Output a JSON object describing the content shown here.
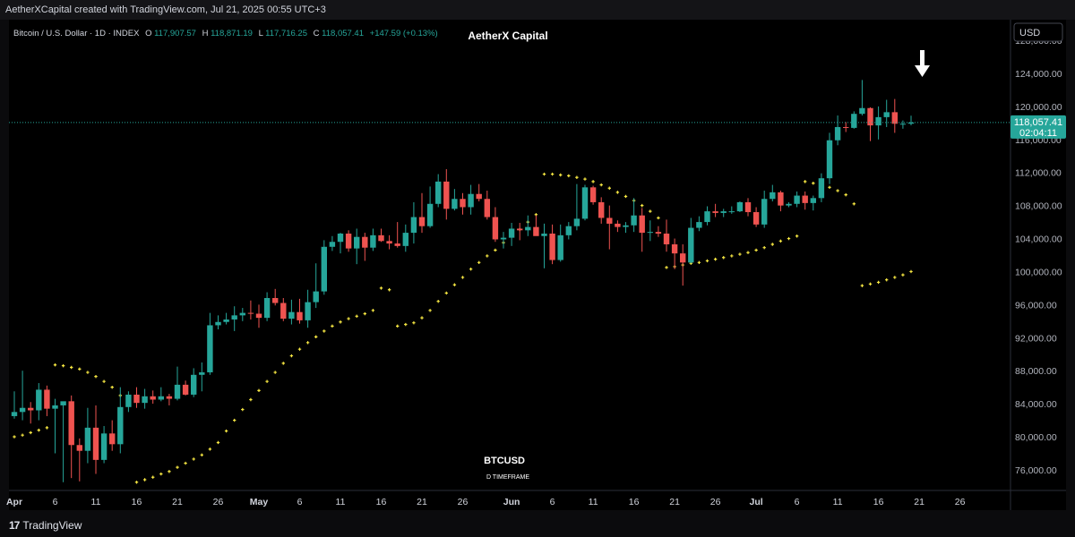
{
  "header": {
    "credit": "AetherXCapital created with TradingView.com, Jul 21, 2025 00:55 UTC+3"
  },
  "legend": {
    "symbol": "Bitcoin / U.S. Dollar · 1D · INDEX",
    "o_label": "O",
    "o_value": "117,907.57",
    "h_label": "H",
    "h_value": "118,871.19",
    "l_label": "L",
    "l_value": "117,716.25",
    "c_label": "C",
    "c_value": "118,057.41",
    "change": "+147.59 (+0.13%)"
  },
  "watermark": {
    "brand": "AetherX Capital",
    "ticker": "BTCUSD",
    "timeframe": "D TIMEFRAME"
  },
  "price_axis": {
    "currency": "USD",
    "last_price": "118,057.41",
    "countdown": "02:04:11"
  },
  "footer": {
    "brand": "TradingView"
  },
  "colors": {
    "up": "#26a69a",
    "down": "#ef5350",
    "sar": "#f5e642",
    "bg": "#000000",
    "grid_text": "#b2b5be"
  },
  "chart_data": {
    "type": "candlestick",
    "x_axis_labels": [
      "Apr",
      "6",
      "11",
      "16",
      "21",
      "26",
      "May",
      "6",
      "11",
      "16",
      "21",
      "26",
      "Jun",
      "6",
      "11",
      "16",
      "21",
      "26",
      "Jul",
      "6",
      "11",
      "16",
      "21",
      "26"
    ],
    "x_axis_dates": [
      "2025-04-01",
      "2025-04-06",
      "2025-04-11",
      "2025-04-16",
      "2025-04-21",
      "2025-04-26",
      "2025-05-01",
      "2025-05-06",
      "2025-05-11",
      "2025-05-16",
      "2025-05-21",
      "2025-05-26",
      "2025-06-01",
      "2025-06-06",
      "2025-06-11",
      "2025-06-16",
      "2025-06-21",
      "2025-06-26",
      "2025-07-01",
      "2025-07-06",
      "2025-07-11",
      "2025-07-16",
      "2025-07-21",
      "2025-07-26"
    ],
    "y_ticks": [
      "128,000.00",
      "124,000.00",
      "120,000.00",
      "116,000.00",
      "112,000.00",
      "108,000.00",
      "104,000.00",
      "100,000.00",
      "96,000.00",
      "92,000.00",
      "88,000.00",
      "84,000.00",
      "80,000.00",
      "76,000.00"
    ],
    "ylim": [
      73500,
      130500
    ],
    "last_price": 118057.41,
    "annotation": "down-arrow above 2025-07-18",
    "candles": [
      [
        "2025-04-01",
        82500,
        85500,
        82200,
        83000
      ],
      [
        "2025-04-02",
        83000,
        88000,
        82000,
        83500
      ],
      [
        "2025-04-03",
        83500,
        84200,
        81600,
        83200
      ],
      [
        "2025-04-04",
        83200,
        86500,
        82000,
        85700
      ],
      [
        "2025-04-05",
        85700,
        86200,
        82500,
        83400
      ],
      [
        "2025-04-06",
        83400,
        84600,
        78000,
        83800
      ],
      [
        "2025-04-07",
        83800,
        84200,
        74500,
        84300
      ],
      [
        "2025-04-08",
        84300,
        85000,
        75000,
        79000
      ],
      [
        "2025-04-09",
        79000,
        79800,
        74600,
        78300
      ],
      [
        "2025-04-10",
        78300,
        83500,
        76800,
        81100
      ],
      [
        "2025-04-11",
        81100,
        83800,
        75500,
        77200
      ],
      [
        "2025-04-12",
        77200,
        81300,
        76800,
        80400
      ],
      [
        "2025-04-13",
        80400,
        82000,
        78300,
        79100
      ],
      [
        "2025-04-14",
        79100,
        86000,
        78000,
        83600
      ],
      [
        "2025-04-15",
        83600,
        85500,
        83000,
        85100
      ],
      [
        "2025-04-16",
        85100,
        86000,
        83500,
        84100
      ],
      [
        "2025-04-17",
        84100,
        85800,
        83400,
        84900
      ],
      [
        "2025-04-18",
        84900,
        85600,
        84000,
        84500
      ],
      [
        "2025-04-19",
        84500,
        86000,
        84300,
        84900
      ],
      [
        "2025-04-20",
        84900,
        85200,
        83800,
        84600
      ],
      [
        "2025-04-21",
        84600,
        88500,
        84400,
        86300
      ],
      [
        "2025-04-22",
        86300,
        86800,
        85000,
        85100
      ],
      [
        "2025-04-23",
        85100,
        88300,
        84800,
        87500
      ],
      [
        "2025-04-24",
        87500,
        89000,
        85500,
        87800
      ],
      [
        "2025-04-25",
        87800,
        95000,
        87500,
        93500
      ],
      [
        "2025-04-26",
        93500,
        94700,
        93000,
        93900
      ],
      [
        "2025-04-27",
        93900,
        95000,
        93600,
        94200
      ],
      [
        "2025-04-28",
        94200,
        95800,
        92800,
        94700
      ],
      [
        "2025-04-29",
        94700,
        95600,
        94000,
        95000
      ],
      [
        "2025-04-30",
        95000,
        96500,
        94200,
        94900
      ],
      [
        "2025-05-01",
        94900,
        96000,
        93200,
        94400
      ],
      [
        "2025-05-02",
        94400,
        97500,
        94000,
        96800
      ],
      [
        "2025-05-03",
        96800,
        97900,
        95900,
        96200
      ],
      [
        "2025-05-04",
        96200,
        96800,
        94000,
        94300
      ],
      [
        "2025-05-05",
        94300,
        96600,
        93600,
        95100
      ],
      [
        "2025-05-06",
        95100,
        96700,
        93700,
        94100
      ],
      [
        "2025-05-07",
        94100,
        97800,
        93200,
        96300
      ],
      [
        "2025-05-08",
        96300,
        101000,
        95600,
        97600
      ],
      [
        "2025-05-09",
        97600,
        103800,
        97200,
        103000
      ],
      [
        "2025-05-10",
        103000,
        104300,
        102500,
        103600
      ],
      [
        "2025-05-11",
        103600,
        104700,
        102200,
        104600
      ],
      [
        "2025-05-12",
        104600,
        105000,
        102400,
        102800
      ],
      [
        "2025-05-13",
        102800,
        105200,
        100900,
        104200
      ],
      [
        "2025-05-14",
        104200,
        104700,
        101300,
        102900
      ],
      [
        "2025-05-15",
        102900,
        105200,
        102500,
        104400
      ],
      [
        "2025-05-16",
        104400,
        105200,
        103600,
        103700
      ],
      [
        "2025-05-17",
        103700,
        104400,
        102700,
        103400
      ],
      [
        "2025-05-18",
        103400,
        106000,
        102900,
        103100
      ],
      [
        "2025-05-19",
        103100,
        105700,
        102400,
        104700
      ],
      [
        "2025-05-20",
        104700,
        108400,
        103400,
        106600
      ],
      [
        "2025-05-21",
        106600,
        109500,
        104700,
        105500
      ],
      [
        "2025-05-22",
        105500,
        110300,
        105300,
        108200
      ],
      [
        "2025-05-23",
        108200,
        111800,
        107800,
        110900
      ],
      [
        "2025-05-24",
        110900,
        112400,
        106300,
        107600
      ],
      [
        "2025-05-25",
        107600,
        110000,
        107400,
        108800
      ],
      [
        "2025-05-26",
        108800,
        109500,
        106900,
        107800
      ],
      [
        "2025-05-27",
        107800,
        110500,
        106900,
        109400
      ],
      [
        "2025-05-28",
        109400,
        110600,
        108500,
        108800
      ],
      [
        "2025-05-29",
        108800,
        109800,
        106300,
        106600
      ],
      [
        "2025-05-30",
        106600,
        107800,
        103600,
        103900
      ],
      [
        "2025-05-31",
        103900,
        104800,
        102800,
        104100
      ],
      [
        "2025-06-01",
        104100,
        105900,
        103100,
        105200
      ],
      [
        "2025-06-02",
        105200,
        105900,
        103800,
        105000
      ],
      [
        "2025-06-03",
        105000,
        106800,
        104300,
        105400
      ],
      [
        "2025-06-04",
        105400,
        106800,
        104400,
        104300
      ],
      [
        "2025-06-05",
        104300,
        105800,
        100400,
        104600
      ],
      [
        "2025-06-06",
        104600,
        105700,
        100900,
        101400
      ],
      [
        "2025-06-07",
        101400,
        105700,
        101200,
        104400
      ],
      [
        "2025-06-08",
        104400,
        106000,
        103900,
        105500
      ],
      [
        "2025-06-09",
        105500,
        110600,
        105000,
        106400
      ],
      [
        "2025-06-10",
        106400,
        110500,
        106200,
        110200
      ],
      [
        "2025-06-11",
        110200,
        110400,
        108100,
        108400
      ],
      [
        "2025-06-12",
        108400,
        109000,
        105800,
        106500
      ],
      [
        "2025-06-13",
        106500,
        108000,
        102700,
        105800
      ],
      [
        "2025-06-14",
        105800,
        106200,
        104800,
        105400
      ],
      [
        "2025-06-15",
        105400,
        106000,
        104700,
        105600
      ],
      [
        "2025-06-16",
        105600,
        108900,
        104800,
        106800
      ],
      [
        "2025-06-17",
        106800,
        107700,
        102400,
        104700
      ],
      [
        "2025-06-18",
        104700,
        106200,
        103700,
        104800
      ],
      [
        "2025-06-19",
        104800,
        105500,
        104200,
        104600
      ],
      [
        "2025-06-20",
        104600,
        106300,
        102400,
        103300
      ],
      [
        "2025-06-21",
        103300,
        104000,
        100300,
        102200
      ],
      [
        "2025-06-22",
        102200,
        103300,
        98300,
        101100
      ],
      [
        "2025-06-23",
        101100,
        106500,
        101000,
        105300
      ],
      [
        "2025-06-24",
        105300,
        106700,
        104900,
        106000
      ],
      [
        "2025-06-25",
        106000,
        107900,
        105600,
        107300
      ],
      [
        "2025-06-26",
        107300,
        108200,
        106600,
        107100
      ],
      [
        "2025-06-27",
        107100,
        107600,
        106600,
        107300
      ],
      [
        "2025-06-28",
        107300,
        107900,
        107000,
        107300
      ],
      [
        "2025-06-29",
        107300,
        108500,
        107200,
        108400
      ],
      [
        "2025-06-30",
        108400,
        108900,
        106700,
        107200
      ],
      [
        "2025-07-01",
        107200,
        107800,
        105400,
        105700
      ],
      [
        "2025-07-02",
        105700,
        109800,
        105300,
        108800
      ],
      [
        "2025-07-03",
        108800,
        110500,
        108500,
        109600
      ],
      [
        "2025-07-04",
        109600,
        109800,
        107300,
        108000
      ],
      [
        "2025-07-05",
        108000,
        108400,
        107800,
        108200
      ],
      [
        "2025-07-06",
        108200,
        109700,
        107800,
        109200
      ],
      [
        "2025-07-07",
        109200,
        109700,
        107500,
        108300
      ],
      [
        "2025-07-08",
        108300,
        109200,
        107400,
        108900
      ],
      [
        "2025-07-09",
        108900,
        111900,
        108400,
        111300
      ],
      [
        "2025-07-10",
        111300,
        116800,
        110600,
        115900
      ],
      [
        "2025-07-11",
        115900,
        118900,
        115300,
        117500
      ],
      [
        "2025-07-12",
        117500,
        118100,
        116900,
        117400
      ],
      [
        "2025-07-13",
        117400,
        119400,
        117300,
        119100
      ],
      [
        "2025-07-14",
        119100,
        123200,
        118900,
        119800
      ],
      [
        "2025-07-15",
        119800,
        119900,
        115800,
        117700
      ],
      [
        "2025-07-16",
        117700,
        120000,
        116000,
        118700
      ],
      [
        "2025-07-17",
        118700,
        120800,
        117500,
        119300
      ],
      [
        "2025-07-18",
        119300,
        120900,
        116800,
        117900
      ],
      [
        "2025-07-19",
        117900,
        118300,
        117300,
        117900
      ],
      [
        "2025-07-20",
        117907.57,
        118871.19,
        117716.25,
        118057.41
      ]
    ],
    "parabolic_sar": [
      [
        "2025-04-01",
        80000
      ],
      [
        "2025-04-02",
        80200
      ],
      [
        "2025-04-03",
        80500
      ],
      [
        "2025-04-04",
        80800
      ],
      [
        "2025-04-05",
        81100
      ],
      [
        "2025-04-06",
        88700
      ],
      [
        "2025-04-07",
        88600
      ],
      [
        "2025-04-08",
        88400
      ],
      [
        "2025-04-09",
        88200
      ],
      [
        "2025-04-10",
        87800
      ],
      [
        "2025-04-11",
        87300
      ],
      [
        "2025-04-12",
        86700
      ],
      [
        "2025-04-13",
        86000
      ],
      [
        "2025-04-14",
        85000
      ],
      [
        "2025-04-15",
        84200
      ],
      [
        "2025-04-16",
        74500
      ],
      [
        "2025-04-17",
        74800
      ],
      [
        "2025-04-18",
        75100
      ],
      [
        "2025-04-19",
        75500
      ],
      [
        "2025-04-20",
        75800
      ],
      [
        "2025-04-21",
        76300
      ],
      [
        "2025-04-22",
        76800
      ],
      [
        "2025-04-23",
        77300
      ],
      [
        "2025-04-24",
        77800
      ],
      [
        "2025-04-25",
        78500
      ],
      [
        "2025-04-26",
        79300
      ],
      [
        "2025-04-27",
        80700
      ],
      [
        "2025-04-28",
        82000
      ],
      [
        "2025-04-29",
        83300
      ],
      [
        "2025-04-30",
        84500
      ],
      [
        "2025-05-01",
        85600
      ],
      [
        "2025-05-02",
        86700
      ],
      [
        "2025-05-03",
        87800
      ],
      [
        "2025-05-04",
        88900
      ],
      [
        "2025-05-05",
        89800
      ],
      [
        "2025-05-06",
        90600
      ],
      [
        "2025-05-07",
        91400
      ],
      [
        "2025-05-08",
        92100
      ],
      [
        "2025-05-09",
        92800
      ],
      [
        "2025-05-10",
        93400
      ],
      [
        "2025-05-11",
        93900
      ],
      [
        "2025-05-12",
        94300
      ],
      [
        "2025-05-13",
        94600
      ],
      [
        "2025-05-14",
        94900
      ],
      [
        "2025-05-15",
        95300
      ],
      [
        "2025-05-16",
        98000
      ],
      [
        "2025-05-17",
        97800
      ],
      [
        "2025-05-18",
        93400
      ],
      [
        "2025-05-19",
        93600
      ],
      [
        "2025-05-20",
        93800
      ],
      [
        "2025-05-21",
        94400
      ],
      [
        "2025-05-22",
        95300
      ],
      [
        "2025-05-23",
        96400
      ],
      [
        "2025-05-24",
        97400
      ],
      [
        "2025-05-25",
        98400
      ],
      [
        "2025-05-26",
        99300
      ],
      [
        "2025-05-27",
        100300
      ],
      [
        "2025-05-28",
        101100
      ],
      [
        "2025-05-29",
        101900
      ],
      [
        "2025-05-30",
        102600
      ],
      [
        "2025-05-31",
        103500
      ],
      [
        "2025-06-01",
        104300
      ],
      [
        "2025-06-02",
        105100
      ],
      [
        "2025-06-03",
        106000
      ],
      [
        "2025-06-04",
        106900
      ],
      [
        "2025-06-05",
        111800
      ],
      [
        "2025-06-06",
        111800
      ],
      [
        "2025-06-07",
        111700
      ],
      [
        "2025-06-08",
        111600
      ],
      [
        "2025-06-09",
        111400
      ],
      [
        "2025-06-10",
        111200
      ],
      [
        "2025-06-11",
        110900
      ],
      [
        "2025-06-12",
        110500
      ],
      [
        "2025-06-13",
        110100
      ],
      [
        "2025-06-14",
        109600
      ],
      [
        "2025-06-15",
        109100
      ],
      [
        "2025-06-16",
        108600
      ],
      [
        "2025-06-17",
        108000
      ],
      [
        "2025-06-18",
        107300
      ],
      [
        "2025-06-19",
        106500
      ],
      [
        "2025-06-20",
        100500
      ],
      [
        "2025-06-21",
        100600
      ],
      [
        "2025-06-22",
        100800
      ],
      [
        "2025-06-23",
        101000
      ],
      [
        "2025-06-24",
        101100
      ],
      [
        "2025-06-25",
        101300
      ],
      [
        "2025-06-26",
        101500
      ],
      [
        "2025-06-27",
        101700
      ],
      [
        "2025-06-28",
        101900
      ],
      [
        "2025-06-29",
        102100
      ],
      [
        "2025-06-30",
        102300
      ],
      [
        "2025-07-01",
        102600
      ],
      [
        "2025-07-02",
        102900
      ],
      [
        "2025-07-03",
        103300
      ],
      [
        "2025-07-04",
        103700
      ],
      [
        "2025-07-05",
        104000
      ],
      [
        "2025-07-06",
        104300
      ],
      [
        "2025-07-07",
        110900
      ],
      [
        "2025-07-08",
        110700
      ],
      [
        "2025-07-09",
        110500
      ],
      [
        "2025-07-10",
        110200
      ],
      [
        "2025-07-11",
        109800
      ],
      [
        "2025-07-12",
        109300
      ],
      [
        "2025-07-13",
        108200
      ],
      [
        "2025-07-14",
        98300
      ],
      [
        "2025-07-15",
        98500
      ],
      [
        "2025-07-16",
        98700
      ],
      [
        "2025-07-17",
        99000
      ],
      [
        "2025-07-18",
        99300
      ],
      [
        "2025-07-19",
        99600
      ],
      [
        "2025-07-20",
        100000
      ]
    ]
  }
}
